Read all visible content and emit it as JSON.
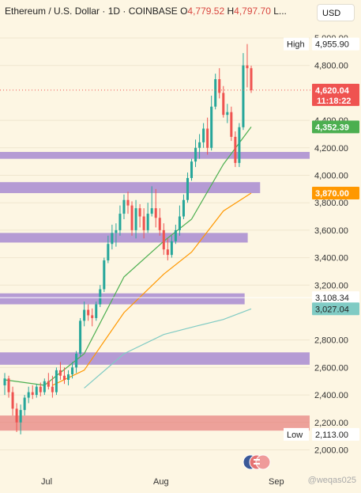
{
  "header": {
    "symbol": "Ethereum / U.S. Dollar · 1D · COINBASE",
    "open_label": "O",
    "open_value": "4,779.52",
    "high_label": "H",
    "high_value": "4,797.70",
    "low_trunc": "L..."
  },
  "currency_selector": "USD",
  "watermark": "@weqas025",
  "colors": {
    "background": "#fdf6e3",
    "up": "#26a69a",
    "down": "#ef5350",
    "purple_zone": "#9575cd",
    "red_zone": "#e57373",
    "ema_short": "#4caf50",
    "ema_mid": "#ff9800",
    "ema_long": "#80cbc4"
  },
  "price_axis": {
    "ticks": [
      "5,000.00",
      "4,800.00",
      "4,400.00",
      "4,200.00",
      "4,000.00",
      "3,800.00",
      "3,600.00",
      "3,400.00",
      "3,200.00",
      "2,800.00",
      "2,600.00",
      "2,400.00",
      "2,200.00",
      "2,000.00"
    ],
    "tick_values": [
      5000,
      4800,
      4400,
      4200,
      4000,
      3800,
      3600,
      3400,
      3200,
      2800,
      2600,
      2400,
      2200,
      2000
    ]
  },
  "time_axis": {
    "labels": [
      "Jul",
      "Aug",
      "Sep"
    ]
  },
  "badges": {
    "high": {
      "label": "High",
      "value": "4,955.90",
      "price": 4955.9
    },
    "current": {
      "value": "4,620.04",
      "countdown": "11:18:22",
      "price": 4620.04,
      "color": "#ef5350"
    },
    "ema_short": {
      "value": "4,352.39",
      "price": 4352.39,
      "color": "#4caf50"
    },
    "ema_mid": {
      "value": "3,870.00",
      "price": 3870.0,
      "color": "#ff9800"
    },
    "level": {
      "value": "3,108.34",
      "price": 3108.34
    },
    "ema_long": {
      "value": "3,027.04",
      "price": 3027.04,
      "color": "#80cbc4"
    },
    "low": {
      "label": "Low",
      "value": "2,113.00",
      "price": 2113.0
    }
  },
  "zones": [
    {
      "type": "purple",
      "low": 4120,
      "high": 4170,
      "end": 1.0
    },
    {
      "type": "purple",
      "low": 3870,
      "high": 3950,
      "end": 0.84
    },
    {
      "type": "purple",
      "low": 3510,
      "high": 3580,
      "end": 0.8
    },
    {
      "type": "purple",
      "low": 3060,
      "high": 3140,
      "end": 0.79
    },
    {
      "type": "purple",
      "low": 2620,
      "high": 2710,
      "end": 1.0
    },
    {
      "type": "red",
      "low": 2140,
      "high": 2250,
      "end": 1.0
    }
  ],
  "chart_data": {
    "type": "candlestick",
    "instrument": "Ethereum / U.S. Dollar",
    "interval": "1D",
    "ylim": [
      1950,
      5050
    ],
    "candles": [
      [
        2470,
        2560,
        2400,
        2520
      ],
      [
        2520,
        2540,
        2380,
        2420
      ],
      [
        2420,
        2460,
        2250,
        2300
      ],
      [
        2300,
        2340,
        2130,
        2200
      ],
      [
        2200,
        2330,
        2113,
        2290
      ],
      [
        2290,
        2400,
        2250,
        2380
      ],
      [
        2380,
        2460,
        2340,
        2420
      ],
      [
        2420,
        2470,
        2370,
        2400
      ],
      [
        2400,
        2480,
        2380,
        2460
      ],
      [
        2460,
        2490,
        2390,
        2420
      ],
      [
        2420,
        2520,
        2400,
        2500
      ],
      [
        2500,
        2560,
        2440,
        2460
      ],
      [
        2460,
        2540,
        2380,
        2420
      ],
      [
        2420,
        2600,
        2400,
        2580
      ],
      [
        2580,
        2640,
        2510,
        2540
      ],
      [
        2540,
        2600,
        2480,
        2510
      ],
      [
        2510,
        2580,
        2470,
        2550
      ],
      [
        2550,
        2640,
        2520,
        2600
      ],
      [
        2600,
        2720,
        2560,
        2700
      ],
      [
        2700,
        2960,
        2680,
        2940
      ],
      [
        2940,
        3080,
        2900,
        3020
      ],
      [
        3020,
        3060,
        2940,
        2980
      ],
      [
        2980,
        3030,
        2900,
        2960
      ],
      [
        2960,
        3080,
        2940,
        3060
      ],
      [
        3060,
        3200,
        3040,
        3170
      ],
      [
        3170,
        3400,
        3150,
        3380
      ],
      [
        3380,
        3560,
        3360,
        3500
      ],
      [
        3500,
        3640,
        3460,
        3580
      ],
      [
        3580,
        3650,
        3480,
        3600
      ],
      [
        3600,
        3780,
        3560,
        3720
      ],
      [
        3720,
        3860,
        3680,
        3820
      ],
      [
        3820,
        3880,
        3720,
        3780
      ],
      [
        3780,
        3810,
        3560,
        3600
      ],
      [
        3600,
        3820,
        3540,
        3760
      ],
      [
        3760,
        3790,
        3620,
        3700
      ],
      [
        3700,
        3760,
        3540,
        3600
      ],
      [
        3600,
        3800,
        3580,
        3720
      ],
      [
        3720,
        3920,
        3700,
        3760
      ],
      [
        3760,
        3900,
        3620,
        3690
      ],
      [
        3690,
        3760,
        3560,
        3600
      ],
      [
        3600,
        3650,
        3420,
        3460
      ],
      [
        3460,
        3540,
        3380,
        3420
      ],
      [
        3420,
        3560,
        3400,
        3520
      ],
      [
        3520,
        3640,
        3500,
        3600
      ],
      [
        3600,
        3780,
        3560,
        3700
      ],
      [
        3700,
        3860,
        3680,
        3820
      ],
      [
        3820,
        4020,
        3800,
        3980
      ],
      [
        3980,
        4120,
        3960,
        4100
      ],
      [
        4100,
        4260,
        4060,
        4200
      ],
      [
        4200,
        4300,
        4120,
        4240
      ],
      [
        4240,
        4380,
        4200,
        4340
      ],
      [
        4340,
        4420,
        4150,
        4200
      ],
      [
        4200,
        4580,
        4180,
        4500
      ],
      [
        4500,
        4740,
        4480,
        4700
      ],
      [
        4700,
        4780,
        4560,
        4600
      ],
      [
        4600,
        4650,
        4420,
        4440
      ],
      [
        4440,
        4520,
        4380,
        4460
      ],
      [
        4460,
        4500,
        4250,
        4280
      ],
      [
        4280,
        4320,
        4060,
        4090
      ],
      [
        4090,
        4380,
        4060,
        4350
      ],
      [
        4350,
        4890,
        4330,
        4800
      ],
      [
        4800,
        4956,
        4640,
        4780
      ],
      [
        4780,
        4798,
        4600,
        4620
      ]
    ],
    "ema_short_anchor": [
      [
        0,
        2510
      ],
      [
        10,
        2470
      ],
      [
        20,
        2700
      ],
      [
        30,
        3260
      ],
      [
        40,
        3520
      ],
      [
        47,
        3680
      ],
      [
        55,
        4080
      ],
      [
        62,
        4352
      ]
    ],
    "ema_mid_anchor": [
      [
        12,
        2470
      ],
      [
        20,
        2580
      ],
      [
        30,
        3000
      ],
      [
        40,
        3280
      ],
      [
        47,
        3440
      ],
      [
        55,
        3740
      ],
      [
        62,
        3870
      ]
    ],
    "ema_long_anchor": [
      [
        20,
        2450
      ],
      [
        30,
        2700
      ],
      [
        40,
        2840
      ],
      [
        48,
        2900
      ],
      [
        55,
        2950
      ],
      [
        62,
        3027
      ]
    ]
  }
}
